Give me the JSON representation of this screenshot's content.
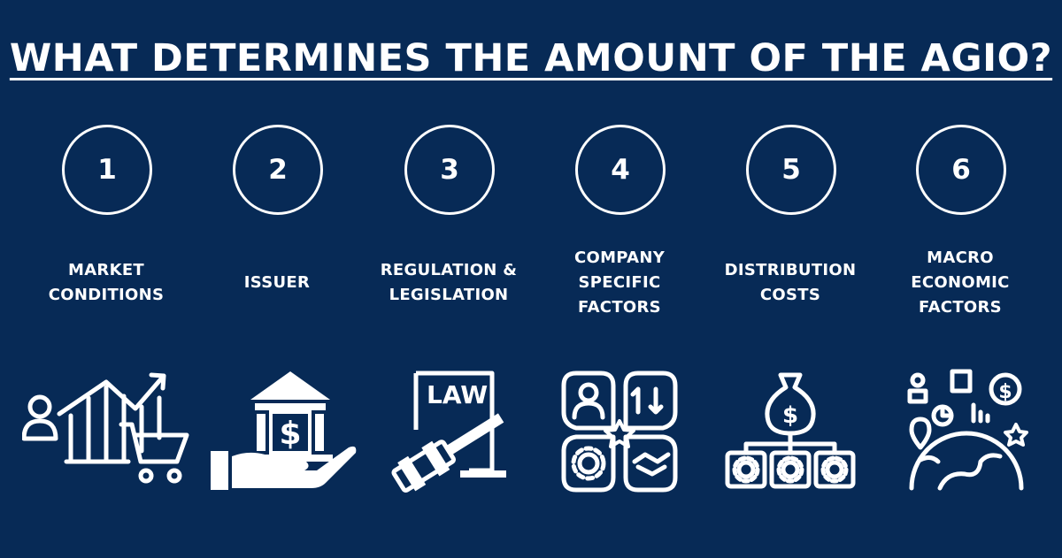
{
  "title": "WHAT DETERMINES THE AMOUNT OF THE AGIO?",
  "colors": {
    "background": "#072a56",
    "foreground": "#ffffff"
  },
  "factors": [
    {
      "number": "1",
      "label": "MARKET\nCONDITIONS",
      "icon": "market-chart-cart-icon"
    },
    {
      "number": "2",
      "label": "ISSUER",
      "icon": "bank-hand-icon"
    },
    {
      "number": "3",
      "label": "REGULATION &\nLEGISLATION",
      "icon": "law-gavel-icon"
    },
    {
      "number": "4",
      "label": "COMPANY\nSPECIFIC\nFACTORS",
      "icon": "company-factors-icon"
    },
    {
      "number": "5",
      "label": "DISTRIBUTION\nCOSTS",
      "icon": "money-bag-distribution-icon"
    },
    {
      "number": "6",
      "label": "MACRO\nECONOMIC\nFACTORS",
      "icon": "globe-economy-icon"
    }
  ]
}
